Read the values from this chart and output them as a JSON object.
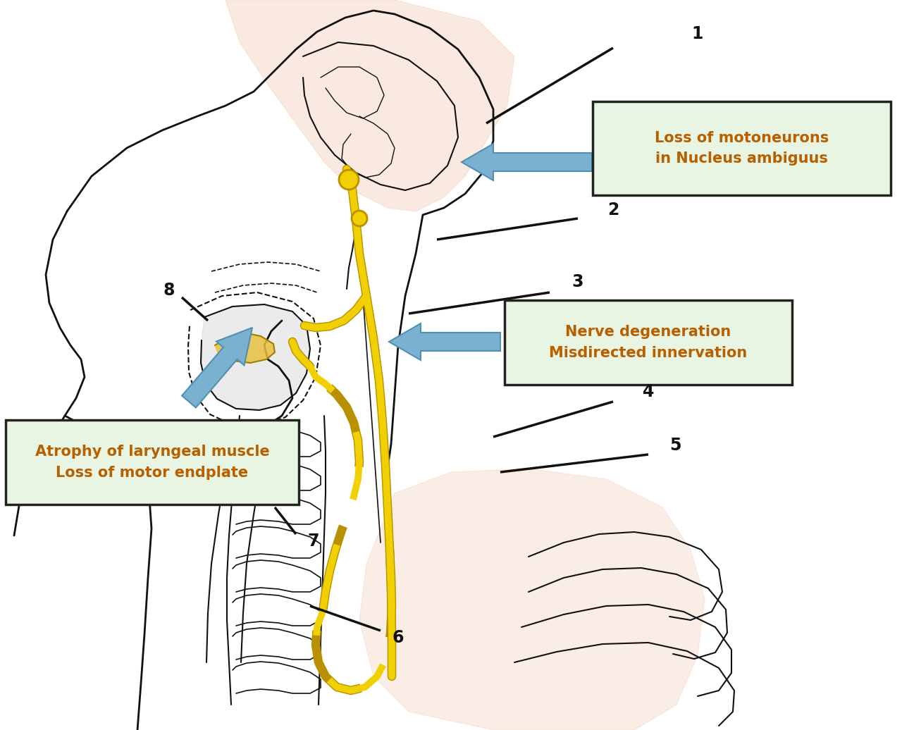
{
  "bg_color": "#ffffff",
  "label_box1_text": "Loss of motoneurons\nin Nucleus ambiguus",
  "label_box2_text": "Nerve degeneration\nMisdirected innervation",
  "label_box3_text": "Atrophy of laryngeal muscle\nLoss of motor endplate",
  "box_bg": "#e8f5e2",
  "box_edge": "#222222",
  "text_color": "#b86000",
  "skin_color": "#f5d8c8",
  "nerve_color": "#f0d000",
  "nerve_edge": "#b89000",
  "line_color": "#111111",
  "arrow_color": "#7ab0d0",
  "arrow_edge": "#5090b0",
  "number_fontsize": 17,
  "label_fontsize": 15
}
